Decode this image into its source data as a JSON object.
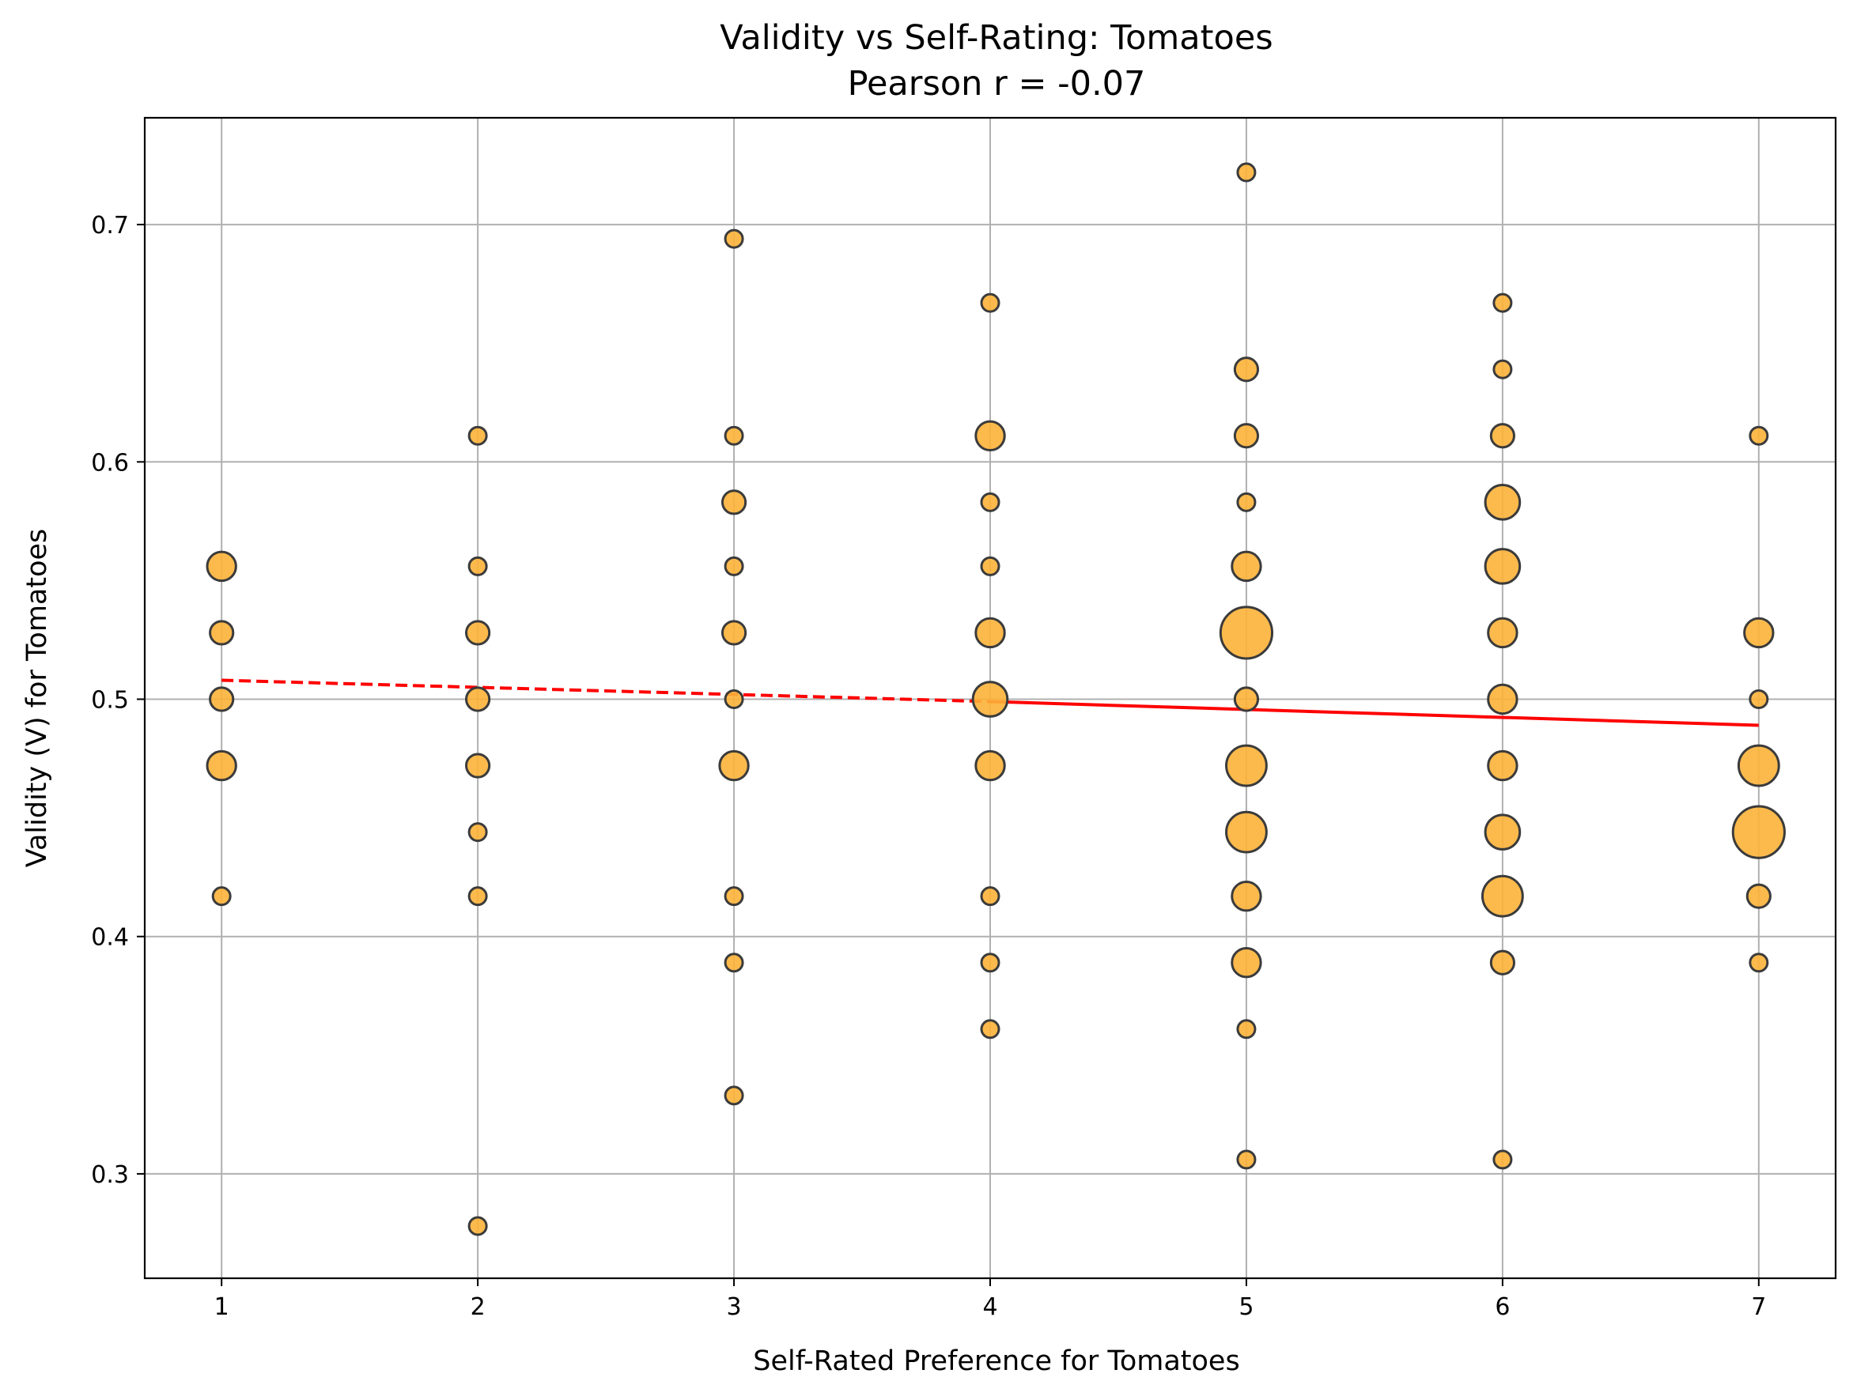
{
  "chart_data": {
    "type": "scatter",
    "title": "Validity vs Self-Rating: Tomatoes",
    "subtitle": "Pearson r = -0.07",
    "xlabel": "Self-Rated Preference for Tomatoes",
    "ylabel": "Validity (V) for Tomatoes",
    "xlim": [
      0.7,
      7.3
    ],
    "ylim": [
      0.256,
      0.745
    ],
    "xticks": [
      1,
      2,
      3,
      4,
      5,
      6,
      7
    ],
    "yticks": [
      0.3,
      0.4,
      0.5,
      0.6,
      0.7
    ],
    "grid": true,
    "colors": {
      "point_fill": "#fdb338",
      "point_edge": "#3b3b3b",
      "trend": "#ff0000"
    },
    "trendline": {
      "dashed": {
        "x": [
          1,
          4
        ],
        "y": [
          0.508,
          0.499
        ]
      },
      "solid": {
        "x": [
          4,
          7
        ],
        "y": [
          0.499,
          0.489
        ]
      }
    },
    "series": [
      {
        "points": [
          {
            "x": 1,
            "y": 0.556,
            "n": 3
          },
          {
            "x": 1,
            "y": 0.528,
            "n": 2
          },
          {
            "x": 1,
            "y": 0.5,
            "n": 2
          },
          {
            "x": 1,
            "y": 0.472,
            "n": 3
          },
          {
            "x": 1,
            "y": 0.417,
            "n": 1
          },
          {
            "x": 2,
            "y": 0.611,
            "n": 1
          },
          {
            "x": 2,
            "y": 0.556,
            "n": 1
          },
          {
            "x": 2,
            "y": 0.528,
            "n": 2
          },
          {
            "x": 2,
            "y": 0.5,
            "n": 2
          },
          {
            "x": 2,
            "y": 0.472,
            "n": 2
          },
          {
            "x": 2,
            "y": 0.444,
            "n": 1
          },
          {
            "x": 2,
            "y": 0.417,
            "n": 1
          },
          {
            "x": 2,
            "y": 0.278,
            "n": 1
          },
          {
            "x": 3,
            "y": 0.694,
            "n": 1
          },
          {
            "x": 3,
            "y": 0.611,
            "n": 1
          },
          {
            "x": 3,
            "y": 0.583,
            "n": 2
          },
          {
            "x": 3,
            "y": 0.556,
            "n": 1
          },
          {
            "x": 3,
            "y": 0.528,
            "n": 2
          },
          {
            "x": 3,
            "y": 0.5,
            "n": 1
          },
          {
            "x": 3,
            "y": 0.472,
            "n": 3
          },
          {
            "x": 3,
            "y": 0.417,
            "n": 1
          },
          {
            "x": 3,
            "y": 0.389,
            "n": 1
          },
          {
            "x": 3,
            "y": 0.333,
            "n": 1
          },
          {
            "x": 4,
            "y": 0.667,
            "n": 1
          },
          {
            "x": 4,
            "y": 0.611,
            "n": 3
          },
          {
            "x": 4,
            "y": 0.583,
            "n": 1
          },
          {
            "x": 4,
            "y": 0.556,
            "n": 1
          },
          {
            "x": 4,
            "y": 0.528,
            "n": 3
          },
          {
            "x": 4,
            "y": 0.5,
            "n": 4
          },
          {
            "x": 4,
            "y": 0.472,
            "n": 3
          },
          {
            "x": 4,
            "y": 0.417,
            "n": 1
          },
          {
            "x": 4,
            "y": 0.389,
            "n": 1
          },
          {
            "x": 4,
            "y": 0.361,
            "n": 1
          },
          {
            "x": 5,
            "y": 0.722,
            "n": 1
          },
          {
            "x": 5,
            "y": 0.639,
            "n": 2
          },
          {
            "x": 5,
            "y": 0.611,
            "n": 2
          },
          {
            "x": 5,
            "y": 0.583,
            "n": 1
          },
          {
            "x": 5,
            "y": 0.556,
            "n": 3
          },
          {
            "x": 5,
            "y": 0.528,
            "n": 7
          },
          {
            "x": 5,
            "y": 0.5,
            "n": 2
          },
          {
            "x": 5,
            "y": 0.472,
            "n": 5
          },
          {
            "x": 5,
            "y": 0.444,
            "n": 5
          },
          {
            "x": 5,
            "y": 0.417,
            "n": 3
          },
          {
            "x": 5,
            "y": 0.389,
            "n": 3
          },
          {
            "x": 5,
            "y": 0.361,
            "n": 1
          },
          {
            "x": 5,
            "y": 0.306,
            "n": 1
          },
          {
            "x": 6,
            "y": 0.667,
            "n": 1
          },
          {
            "x": 6,
            "y": 0.639,
            "n": 1
          },
          {
            "x": 6,
            "y": 0.611,
            "n": 2
          },
          {
            "x": 6,
            "y": 0.583,
            "n": 4
          },
          {
            "x": 6,
            "y": 0.556,
            "n": 4
          },
          {
            "x": 6,
            "y": 0.528,
            "n": 3
          },
          {
            "x": 6,
            "y": 0.5,
            "n": 3
          },
          {
            "x": 6,
            "y": 0.472,
            "n": 3
          },
          {
            "x": 6,
            "y": 0.444,
            "n": 4
          },
          {
            "x": 6,
            "y": 0.417,
            "n": 5
          },
          {
            "x": 6,
            "y": 0.389,
            "n": 2
          },
          {
            "x": 6,
            "y": 0.306,
            "n": 1
          },
          {
            "x": 7,
            "y": 0.611,
            "n": 1
          },
          {
            "x": 7,
            "y": 0.528,
            "n": 3
          },
          {
            "x": 7,
            "y": 0.5,
            "n": 1
          },
          {
            "x": 7,
            "y": 0.472,
            "n": 5
          },
          {
            "x": 7,
            "y": 0.444,
            "n": 7
          },
          {
            "x": 7,
            "y": 0.417,
            "n": 2
          },
          {
            "x": 7,
            "y": 0.389,
            "n": 1
          }
        ]
      }
    ]
  }
}
